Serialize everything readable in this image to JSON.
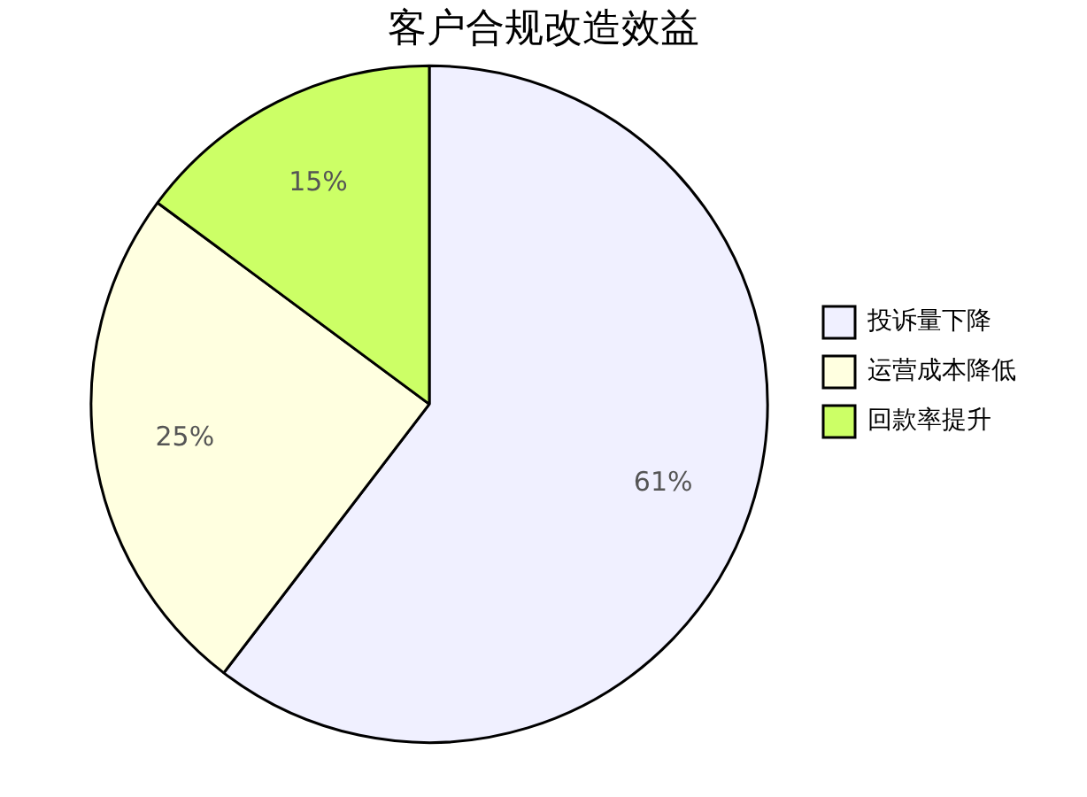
{
  "chart_data": {
    "type": "pie",
    "title": "客户合规改造效益",
    "categories": [
      "投诉量下降",
      "运营成本降低",
      "回款率提升"
    ],
    "values": [
      61,
      25,
      15
    ],
    "value_labels": [
      "61%",
      "25%",
      "15%"
    ],
    "colors": [
      "#f0f0ff",
      "#ffffe0",
      "#ccff66"
    ],
    "legend": "right"
  }
}
